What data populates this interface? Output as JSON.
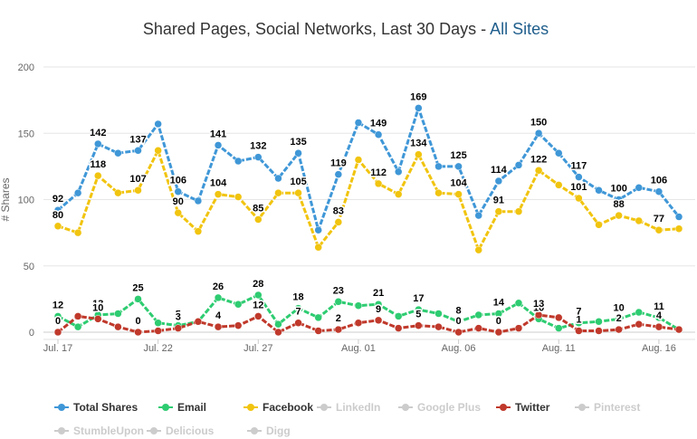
{
  "title": {
    "text": "Shared Pages, Social Networks, Last 30 Days - ",
    "link": "All Sites",
    "link_color": "#1f5e8c"
  },
  "legend": {
    "items": [
      {
        "label": "Total Shares",
        "color": "#3f97d7",
        "active": true
      },
      {
        "label": "Email",
        "color": "#2ecc71",
        "active": true
      },
      {
        "label": "Facebook",
        "color": "#f1c40f",
        "active": true
      },
      {
        "label": "LinkedIn",
        "color": "#cccccc",
        "active": false
      },
      {
        "label": "Google Plus",
        "color": "#cccccc",
        "active": false
      },
      {
        "label": "Twitter",
        "color": "#c0392b",
        "active": true
      },
      {
        "label": "Pinterest",
        "color": "#cccccc",
        "active": false
      },
      {
        "label": "StumbleUpon",
        "color": "#cccccc",
        "active": false
      },
      {
        "label": "Delicious",
        "color": "#cccccc",
        "active": false
      },
      {
        "label": "Digg",
        "color": "#cccccc",
        "active": false
      }
    ]
  },
  "chart_data": {
    "type": "line",
    "title": "Shared Pages, Social Networks, Last 30 Days - All Sites",
    "ylabel": "# Shares",
    "ylim": [
      0,
      200
    ],
    "yticks": [
      0,
      50,
      100,
      150,
      200
    ],
    "x": [
      "Jul. 17",
      "Jul. 18",
      "Jul. 19",
      "Jul. 20",
      "Jul. 21",
      "Jul. 22",
      "Jul. 23",
      "Jul. 24",
      "Jul. 25",
      "Jul. 26",
      "Jul. 27",
      "Jul. 28",
      "Jul. 29",
      "Jul. 30",
      "Jul. 31",
      "Aug. 01",
      "Aug. 02",
      "Aug. 03",
      "Aug. 04",
      "Aug. 05",
      "Aug. 06",
      "Aug. 07",
      "Aug. 08",
      "Aug. 09",
      "Aug. 10",
      "Aug. 11",
      "Aug. 12",
      "Aug. 13",
      "Aug. 14",
      "Aug. 15",
      "Aug. 16",
      "Aug. 17"
    ],
    "xtick_labels": [
      "Jul. 17",
      "Jul. 22",
      "Jul. 27",
      "Aug. 01",
      "Aug. 06",
      "Aug. 11",
      "Aug. 16"
    ],
    "xtick_indices": [
      0,
      5,
      10,
      15,
      20,
      25,
      30
    ],
    "grid": true,
    "legend_position": "bottom",
    "series": [
      {
        "name": "Total Shares",
        "color": "#3f97d7",
        "values": [
          92,
          105,
          142,
          135,
          137,
          157,
          106,
          99,
          141,
          129,
          132,
          116,
          135,
          77,
          119,
          158,
          149,
          121,
          169,
          125,
          125,
          88,
          114,
          126,
          150,
          135,
          117,
          107,
          100,
          109,
          106,
          87
        ],
        "labeled": [
          0,
          2,
          4,
          6,
          8,
          10,
          12,
          14,
          16,
          18,
          20,
          22,
          24,
          26,
          28,
          30
        ]
      },
      {
        "name": "Facebook",
        "color": "#f1c40f",
        "values": [
          80,
          75,
          118,
          105,
          107,
          137,
          90,
          76,
          104,
          102,
          85,
          105,
          105,
          64,
          83,
          130,
          112,
          104,
          134,
          105,
          104,
          62,
          91,
          91,
          122,
          111,
          101,
          81,
          88,
          84,
          77,
          78
        ],
        "labeled": [
          0,
          2,
          4,
          6,
          8,
          10,
          12,
          14,
          16,
          18,
          20,
          22,
          24,
          26,
          28,
          30
        ]
      },
      {
        "name": "Email",
        "color": "#2ecc71",
        "values": [
          12,
          4,
          13,
          14,
          25,
          7,
          5,
          8,
          26,
          21,
          28,
          6,
          18,
          11,
          23,
          20,
          21,
          12,
          17,
          14,
          8,
          13,
          14,
          22,
          10,
          3,
          7,
          8,
          10,
          15,
          11,
          2
        ],
        "labeled": [
          0,
          2,
          4,
          6,
          8,
          10,
          12,
          14,
          16,
          18,
          20,
          22,
          24,
          26,
          28,
          30
        ]
      },
      {
        "name": "Twitter",
        "color": "#c0392b",
        "values": [
          0,
          12,
          10,
          4,
          0,
          1,
          3,
          8,
          4,
          5,
          12,
          0,
          7,
          1,
          2,
          7,
          9,
          3,
          5,
          4,
          0,
          3,
          0,
          3,
          13,
          11,
          1,
          1,
          2,
          6,
          4,
          2
        ],
        "labeled": [
          0,
          2,
          4,
          6,
          8,
          10,
          12,
          14,
          16,
          18,
          20,
          22,
          24,
          26,
          28,
          30
        ]
      }
    ]
  }
}
